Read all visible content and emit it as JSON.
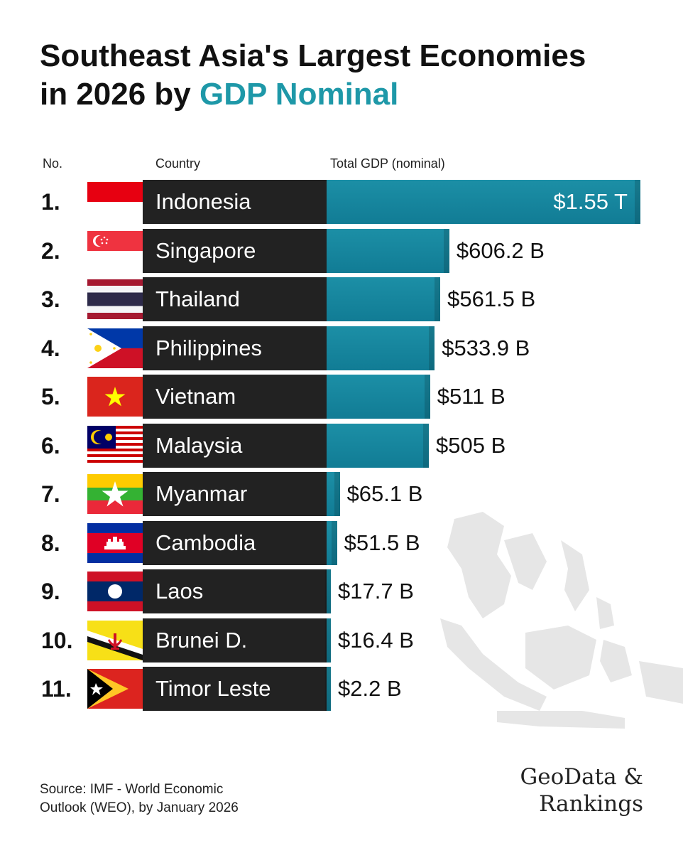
{
  "title": {
    "line1": "Southeast Asia's Largest Economies",
    "line2_prefix": "in 2026 by",
    "line2_accent": "GDP Nominal",
    "accent_color": "#1E98A8"
  },
  "headers": {
    "no": "No.",
    "country": "Country",
    "gdp": "Total GDP (nominal)"
  },
  "chart_data": {
    "type": "bar",
    "orientation": "horizontal",
    "unit": "USD billions",
    "bar_color": "#1A89A2",
    "categories": [
      "Indonesia",
      "Singapore",
      "Thailand",
      "Philippines",
      "Vietnam",
      "Malaysia",
      "Myanmar",
      "Cambodia",
      "Laos",
      "Brunei D.",
      "Timor Leste"
    ],
    "values": [
      1550,
      606.2,
      561.5,
      533.9,
      511,
      505,
      65.1,
      51.5,
      17.7,
      16.4,
      2.2
    ],
    "value_labels": [
      "$1.55 T",
      "$606.2 B",
      "$561.5 B",
      "$533.9 B",
      "$511 B",
      "$505 B",
      "$65.1 B",
      "$51.5 B",
      "$17.7 B",
      "$16.4 B",
      "$2.2 B"
    ],
    "ranks": [
      "1.",
      "2.",
      "3.",
      "4.",
      "5.",
      "6.",
      "7.",
      "8.",
      "9.",
      "10.",
      "11."
    ],
    "flag_icons": [
      "indonesia-flag-icon",
      "singapore-flag-icon",
      "thailand-flag-icon",
      "philippines-flag-icon",
      "vietnam-flag-icon",
      "malaysia-flag-icon",
      "myanmar-flag-icon",
      "cambodia-flag-icon",
      "laos-flag-icon",
      "brunei-flag-icon",
      "timor-leste-flag-icon"
    ]
  },
  "footer": {
    "source_line1": "Source: IMF - World Economic",
    "source_line2": "Outlook (WEO), by January 2026",
    "brand_line1": "GeoData &",
    "brand_line2": "Rankings"
  }
}
